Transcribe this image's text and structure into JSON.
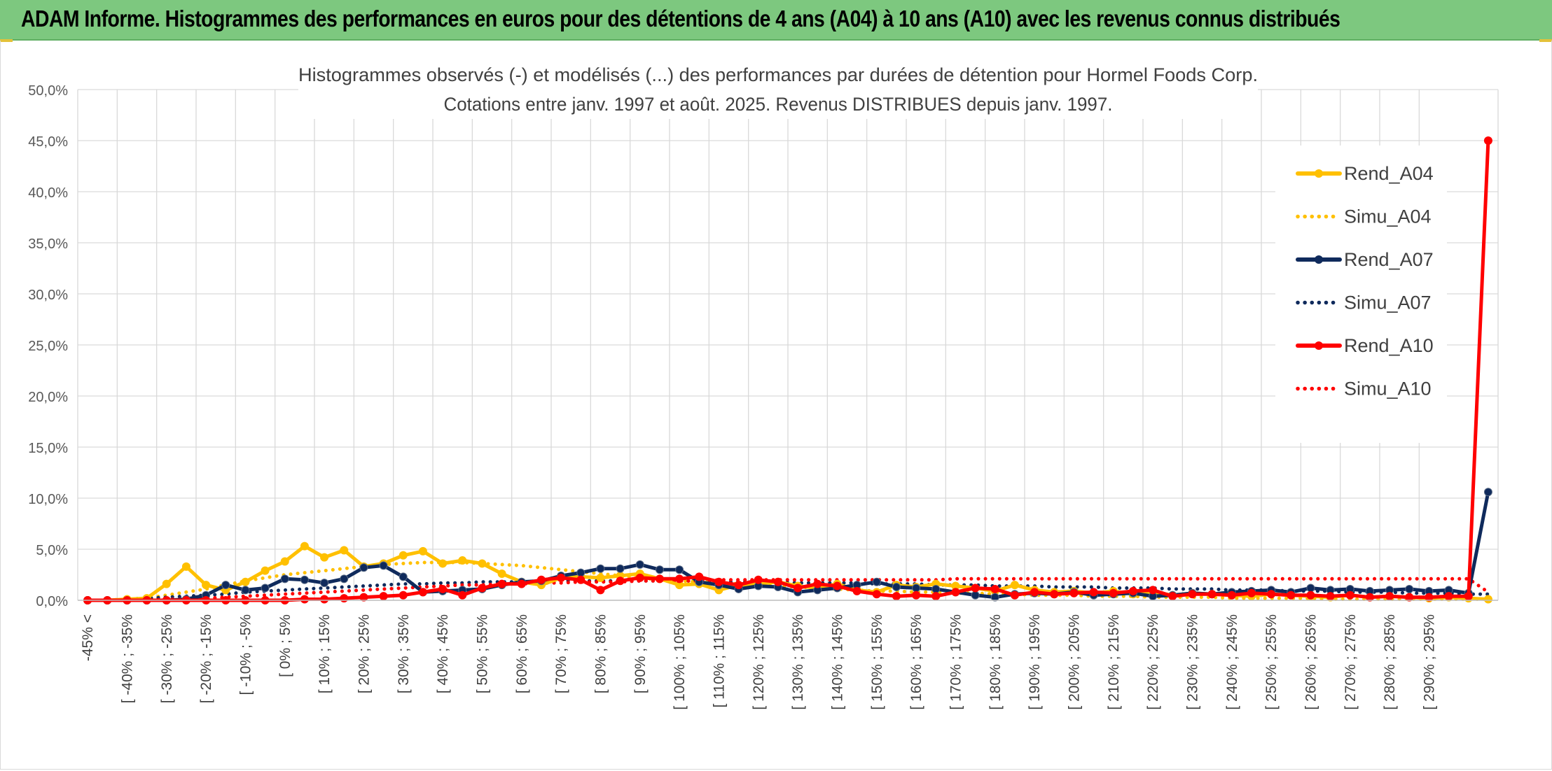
{
  "banner": {
    "title": "ADAM Informe. Histogrammes des performances en euros pour des détentions de 4 ans (A04) à 10 ans (A10) avec les revenus connus distribués"
  },
  "chart_data": {
    "type": "line",
    "title": "Histogrammes observés (-) et modélisés (...) des performances par durées de détention pour Hormel Foods Corp.",
    "subtitle": "Cotations entre janv. 1997 et août. 2025. Revenus DISTRIBUES depuis janv. 1997.",
    "xlabel": "",
    "ylabel": "",
    "ylim": [
      0,
      50
    ],
    "y_ticks": [
      "0,0%",
      "5,0%",
      "10,0%",
      "15,0%",
      "20,0%",
      "25,0%",
      "30,0%",
      "35,0%",
      "40,0%",
      "45,0%",
      "50,0%"
    ],
    "grid": true,
    "legend_position": "top-right",
    "x_tick_labels": [
      "-45% <",
      "[ -40% ; -35%",
      "[ -30% ; -25%",
      "[ -20% ; -15%",
      "[ -10% ; -5%",
      "[ 0% ; 5%",
      "[ 10% ; 15%",
      "[ 20% ; 25%",
      "[ 30% ; 35%",
      "[ 40% ; 45%",
      "[ 50% ; 55%",
      "[ 60% ; 65%",
      "[ 70% ; 75%",
      "[ 80% ; 85%",
      "[ 90% ; 95%",
      "[ 100% ; 105%",
      "[ 110% ; 115%",
      "[ 120% ; 125%",
      "[ 130% ; 135%",
      "[ 140% ; 145%",
      "[ 150% ; 155%",
      "[ 160% ; 165%",
      "[ 170% ; 175%",
      "[ 180% ; 185%",
      "[ 190% ; 195%",
      "[ 200% ; 205%",
      "[ 210% ; 215%",
      "[ 220% ; 225%",
      "[ 230% ; 235%",
      "[ 240% ; 245%",
      "[ 250% ; 255%",
      "[ 260% ; 265%",
      "[ 270% ; 275%",
      "[ 280% ; 285%",
      "[ 290% ; 295%"
    ],
    "series": [
      {
        "name": "Rend_A04",
        "color": "#ffc000",
        "style": "solid",
        "markers": true,
        "values": [
          0.0,
          0.0,
          0.1,
          0.2,
          1.6,
          3.3,
          1.5,
          1.0,
          1.8,
          2.9,
          3.8,
          5.3,
          4.2,
          4.9,
          3.3,
          3.6,
          4.4,
          4.8,
          3.6,
          3.9,
          3.6,
          2.6,
          1.8,
          1.5,
          2.2,
          2.3,
          2.2,
          2.4,
          2.6,
          2.1,
          1.5,
          1.6,
          1.0,
          1.5,
          1.6,
          1.8,
          1.4,
          1.2,
          1.6,
          1.0,
          0.8,
          1.5,
          1.3,
          1.6,
          1.4,
          1.2,
          0.9,
          1.5,
          1.0,
          0.8,
          0.9,
          0.7,
          0.9,
          0.6,
          0.8,
          0.5,
          0.7,
          0.6,
          0.5,
          0.4,
          0.6,
          0.5,
          0.4,
          0.3,
          0.5,
          0.3,
          0.4,
          0.3,
          0.2,
          0.3,
          0.2,
          0.1
        ]
      },
      {
        "name": "Simu_A04",
        "color": "#ffc000",
        "style": "dotted",
        "markers": false,
        "values": [
          0.0,
          0.0,
          0.1,
          0.2,
          0.5,
          0.8,
          1.1,
          1.5,
          1.9,
          2.2,
          2.5,
          2.7,
          2.9,
          3.1,
          3.3,
          3.5,
          3.6,
          3.7,
          3.7,
          3.7,
          3.6,
          3.5,
          3.4,
          3.2,
          3.0,
          2.8,
          2.6,
          2.4,
          2.2,
          2.0,
          1.9,
          1.8,
          1.7,
          1.6,
          1.5,
          1.4,
          1.3,
          1.2,
          1.1,
          1.0,
          0.9,
          0.9,
          0.8,
          0.8,
          0.7,
          0.7,
          0.6,
          0.6,
          0.5,
          0.5,
          0.5,
          0.4,
          0.4,
          0.4,
          0.3,
          0.3,
          0.3,
          0.3,
          0.2,
          0.2,
          0.2,
          0.2,
          0.2,
          0.1,
          0.1,
          0.1,
          0.1,
          0.1,
          0.1,
          0.1,
          0.1,
          0.1
        ]
      },
      {
        "name": "Rend_A07",
        "color": "#0f2a5c",
        "style": "solid",
        "markers": true,
        "values": [
          0.0,
          0.0,
          0.0,
          0.0,
          0.0,
          0.1,
          0.5,
          1.5,
          1.0,
          1.2,
          2.1,
          2.0,
          1.7,
          2.1,
          3.2,
          3.4,
          2.3,
          0.8,
          0.9,
          1.0,
          1.1,
          1.5,
          1.8,
          1.9,
          2.4,
          2.7,
          3.1,
          3.1,
          3.5,
          3.0,
          3.0,
          1.8,
          1.5,
          1.1,
          1.4,
          1.3,
          0.8,
          1.0,
          1.2,
          1.5,
          1.8,
          1.3,
          1.2,
          1.1,
          0.8,
          0.5,
          0.3,
          0.6,
          0.7,
          0.6,
          0.8,
          0.5,
          0.6,
          0.7,
          0.4,
          0.5,
          0.7,
          0.6,
          0.8,
          0.9,
          1.0,
          0.8,
          1.2,
          1.0,
          1.1,
          0.9,
          1.0,
          1.1,
          0.9,
          1.0,
          0.7,
          10.6
        ]
      },
      {
        "name": "Simu_A07",
        "color": "#0f2a5c",
        "style": "dotted",
        "markers": false,
        "values": [
          0.0,
          0.0,
          0.1,
          0.2,
          0.3,
          0.4,
          0.5,
          0.6,
          0.8,
          0.9,
          1.0,
          1.1,
          1.2,
          1.3,
          1.4,
          1.5,
          1.6,
          1.6,
          1.7,
          1.7,
          1.8,
          1.8,
          1.8,
          1.9,
          1.9,
          1.9,
          1.9,
          1.9,
          1.9,
          1.9,
          1.9,
          1.9,
          1.8,
          1.8,
          1.8,
          1.8,
          1.7,
          1.7,
          1.7,
          1.7,
          1.6,
          1.6,
          1.6,
          1.5,
          1.5,
          1.5,
          1.4,
          1.4,
          1.4,
          1.3,
          1.3,
          1.3,
          1.2,
          1.2,
          1.2,
          1.1,
          1.1,
          1.1,
          1.0,
          1.0,
          1.0,
          0.9,
          0.9,
          0.9,
          0.8,
          0.8,
          0.8,
          0.7,
          0.7,
          0.7,
          0.6,
          0.6
        ]
      },
      {
        "name": "Rend_A10",
        "color": "#ff0000",
        "style": "solid",
        "markers": true,
        "values": [
          0.0,
          0.0,
          0.0,
          0.0,
          0.0,
          0.0,
          0.0,
          0.0,
          0.0,
          0.0,
          0.0,
          0.1,
          0.1,
          0.2,
          0.3,
          0.4,
          0.5,
          0.8,
          1.1,
          0.5,
          1.2,
          1.6,
          1.6,
          2.0,
          2.2,
          2.0,
          1.0,
          1.9,
          2.2,
          2.1,
          2.1,
          2.3,
          1.8,
          1.5,
          2.0,
          1.8,
          1.2,
          1.6,
          1.4,
          0.9,
          0.6,
          0.4,
          0.5,
          0.4,
          0.8,
          1.2,
          1.1,
          0.5,
          0.8,
          0.6,
          0.7,
          0.8,
          0.7,
          0.9,
          1.0,
          0.4,
          0.6,
          0.6,
          0.5,
          0.7,
          0.6,
          0.5,
          0.5,
          0.4,
          0.5,
          0.3,
          0.4,
          0.3,
          0.3,
          0.4,
          0.4,
          45.0
        ]
      },
      {
        "name": "Simu_A10",
        "color": "#ff0000",
        "style": "dotted",
        "markers": false,
        "values": [
          0.0,
          0.0,
          0.0,
          0.0,
          0.1,
          0.1,
          0.2,
          0.3,
          0.4,
          0.5,
          0.6,
          0.7,
          0.8,
          0.9,
          1.0,
          1.1,
          1.2,
          1.3,
          1.4,
          1.5,
          1.5,
          1.6,
          1.6,
          1.7,
          1.7,
          1.8,
          1.8,
          1.8,
          1.9,
          1.9,
          1.9,
          1.9,
          2.0,
          2.0,
          2.0,
          2.0,
          2.0,
          2.0,
          2.0,
          2.0,
          2.0,
          2.0,
          2.0,
          2.0,
          2.1,
          2.1,
          2.1,
          2.1,
          2.1,
          2.1,
          2.1,
          2.1,
          2.1,
          2.1,
          2.1,
          2.1,
          2.1,
          2.1,
          2.1,
          2.1,
          2.1,
          2.1,
          2.1,
          2.1,
          2.1,
          2.1,
          2.1,
          2.1,
          2.1,
          2.1,
          2.1,
          0.8
        ]
      }
    ]
  }
}
